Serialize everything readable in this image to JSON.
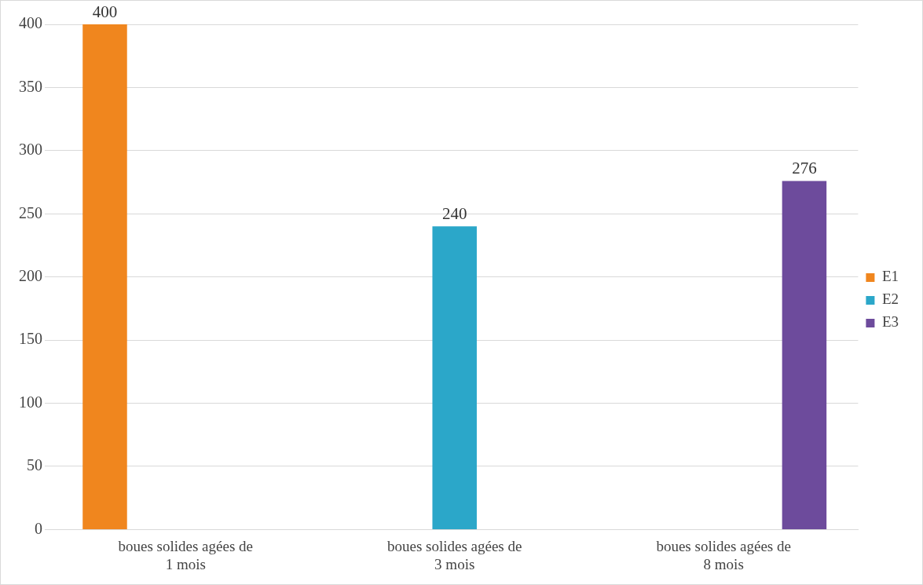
{
  "chart_data": {
    "type": "bar",
    "categories": [
      "boues solides agées de 1 mois",
      "boues solides agées de 3 mois",
      "boues solides agées de 8 mois"
    ],
    "series": [
      {
        "name": "E1",
        "color": "#f0861e",
        "values": [
          400,
          null,
          null
        ]
      },
      {
        "name": "E2",
        "color": "#2ba7c9",
        "values": [
          null,
          240,
          null
        ]
      },
      {
        "name": "E3",
        "color": "#6d4b9c",
        "values": [
          null,
          null,
          276
        ]
      }
    ],
    "ylim": [
      0,
      400
    ],
    "yticks": [
      0,
      50,
      100,
      150,
      200,
      250,
      300,
      350,
      400
    ],
    "grid": "y",
    "legend": "right",
    "data_labels": true
  }
}
